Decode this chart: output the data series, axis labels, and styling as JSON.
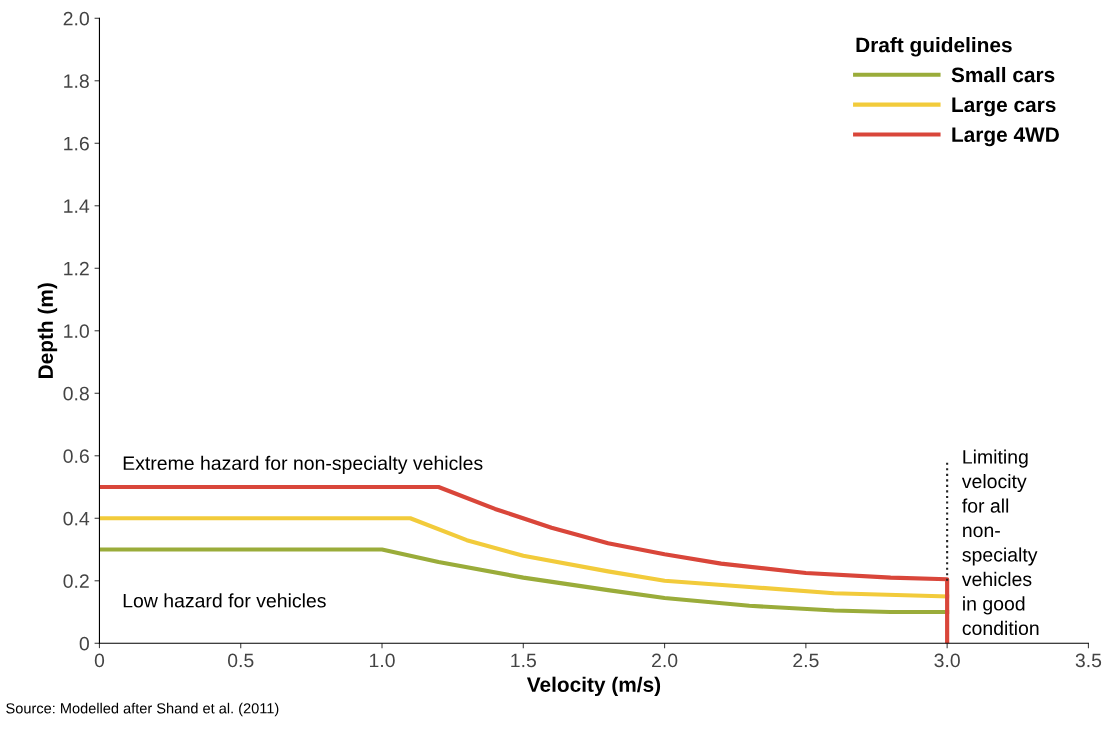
{
  "chart_data": {
    "type": "line",
    "xlabel": "Velocity (m/s)",
    "ylabel": "Depth (m)",
    "legend_title": "Draft guidelines",
    "xlim": [
      0,
      3.5
    ],
    "xticks": [
      0,
      0.5,
      {
        "value": 1.0,
        "label": "1.0"
      },
      1.5,
      {
        "value": 2.0,
        "label": "2.0"
      },
      2.5,
      {
        "value": 3.0,
        "label": "3.0"
      },
      3.5
    ],
    "ylim": [
      0,
      2.0
    ],
    "yticks": [
      0,
      0.2,
      0.4,
      0.6,
      0.8,
      {
        "value": 1.0,
        "label": "1.0"
      },
      1.2,
      1.4,
      1.6,
      1.8,
      {
        "value": 2.0,
        "label": "2.0"
      }
    ],
    "grid": false,
    "legend": "top right",
    "marker": "none",
    "line_style": "solid",
    "series": [
      {
        "name": "Small cars",
        "color": "#9aac3a",
        "x": [
          0,
          1.0,
          1.2,
          1.5,
          1.8,
          2.0,
          2.3,
          2.6,
          2.8,
          3.0
        ],
        "values": [
          0.3,
          0.3,
          0.26,
          0.21,
          0.17,
          0.145,
          0.12,
          0.105,
          0.1,
          0.1
        ]
      },
      {
        "name": "Large cars",
        "color": "#f2cb3b",
        "x": [
          0,
          1.1,
          1.3,
          1.5,
          1.8,
          2.0,
          2.3,
          2.6,
          3.0
        ],
        "values": [
          0.4,
          0.4,
          0.33,
          0.28,
          0.23,
          0.2,
          0.18,
          0.16,
          0.15
        ]
      },
      {
        "name": "Large 4WD",
        "color": "#d9463a",
        "x": [
          0,
          1.2,
          1.4,
          1.6,
          1.8,
          2.0,
          2.2,
          2.5,
          2.8,
          3.0,
          3.0
        ],
        "values": [
          0.5,
          0.5,
          0.43,
          0.37,
          0.32,
          0.285,
          0.255,
          0.225,
          0.21,
          0.205,
          0
        ]
      },
      {
        "color": "#222222",
        "line_style": "dotted",
        "x": [
          3.0,
          3.0
        ],
        "values": [
          0.2,
          0.58
        ]
      }
    ],
    "annotations": [
      "Extreme hazard for non-specialty vehicles",
      "Low hazard for vehicles",
      "Limiting\nvelocity\nfor all\nnon-\nspecialty\nvehicles\nin good\ncondition",
      "Source: Modelled after Shand et al. (2011)"
    ]
  }
}
